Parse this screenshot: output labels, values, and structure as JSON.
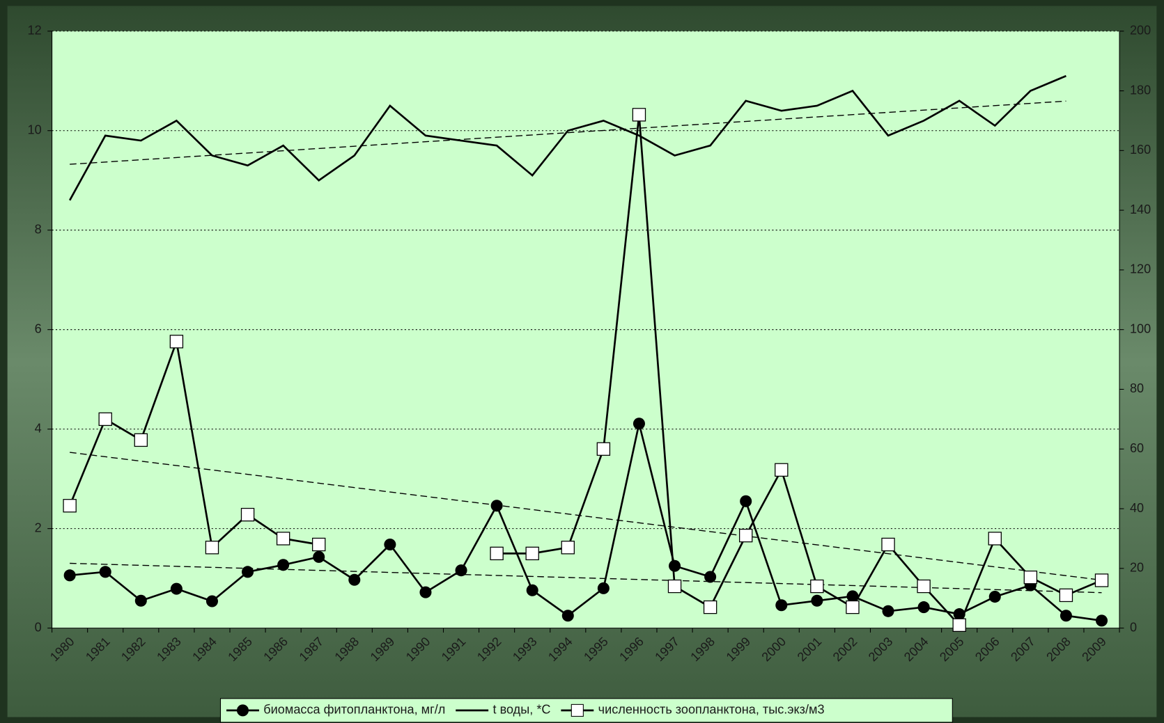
{
  "chart_data": {
    "type": "line",
    "categories": [
      "1980",
      "1981",
      "1982",
      "1983",
      "1984",
      "1985",
      "1986",
      "1987",
      "1988",
      "1989",
      "1990",
      "1991",
      "1992",
      "1993",
      "1994",
      "1995",
      "1996",
      "1997",
      "1998",
      "1999",
      "2000",
      "2001",
      "2002",
      "2003",
      "2004",
      "2005",
      "2006",
      "2007",
      "2008",
      "2009"
    ],
    "series": [
      {
        "name": "биомасса фитопланктона, мг/л",
        "color": "#000000",
        "marker": "circle",
        "trendline": "linear",
        "values": [
          1.06,
          1.13,
          0.55,
          0.79,
          0.54,
          1.13,
          1.27,
          1.43,
          0.97,
          1.68,
          0.72,
          1.16,
          2.46,
          0.76,
          0.25,
          0.8,
          4.11,
          1.25,
          1.03,
          2.55,
          0.46,
          0.55,
          0.64,
          0.34,
          0.42,
          0.28,
          0.63,
          0.86,
          0.25,
          0.15
        ]
      },
      {
        "name": "t воды, *С",
        "color": "#000000",
        "marker": "none",
        "trendline": "linear",
        "values": [
          8.6,
          9.9,
          9.8,
          10.2,
          9.5,
          9.3,
          9.7,
          9.0,
          9.5,
          10.5,
          9.9,
          9.8,
          9.7,
          9.1,
          10.0,
          10.2,
          9.9,
          9.5,
          9.7,
          10.6,
          10.4,
          10.5,
          10.8,
          9.9,
          10.2,
          10.6,
          10.1,
          10.8,
          11.1,
          null
        ]
      },
      {
        "name": "численность зоопланктона, тыс.экз/м3",
        "color": "#000000",
        "marker": "square",
        "trendline": "linear",
        "axis": "y2",
        "values": [
          41,
          70,
          63,
          96,
          27,
          38,
          30,
          28,
          null,
          null,
          null,
          null,
          25,
          25,
          27,
          60,
          172,
          14,
          7,
          31,
          53,
          14,
          7,
          28,
          14,
          1,
          30,
          17,
          11,
          16
        ]
      }
    ],
    "ylim": [
      0,
      12
    ],
    "yticks": [
      0,
      2,
      4,
      6,
      8,
      10,
      12
    ],
    "y2lim": [
      0,
      200
    ],
    "y2ticks": [
      0,
      20,
      40,
      60,
      80,
      100,
      120,
      140,
      160,
      180,
      200
    ],
    "grid": true,
    "legend": "bottom"
  }
}
